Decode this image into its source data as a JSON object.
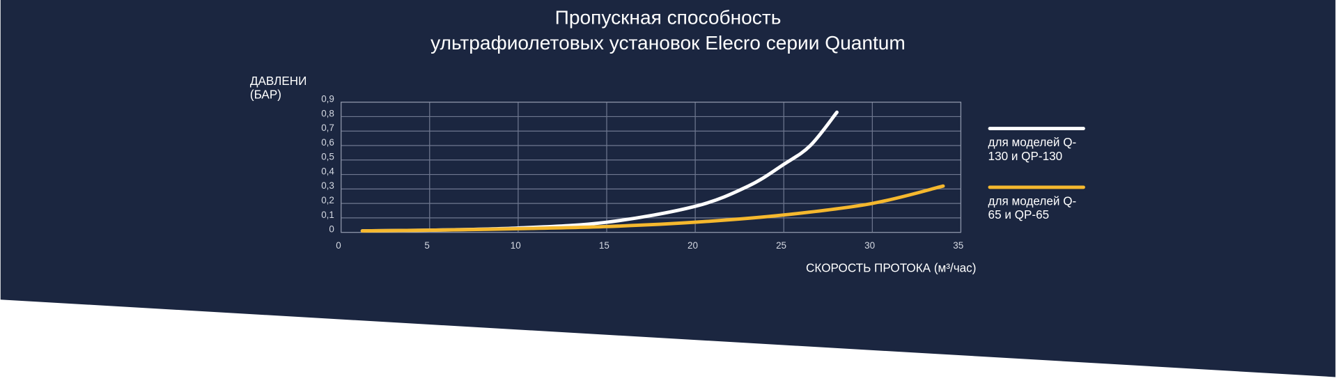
{
  "chart_data": {
    "type": "line",
    "title_lines": [
      "Пропускная способность",
      "ультрафиолетовых установок Elecro серии Quantum"
    ],
    "ylabel_lines": [
      "ДАВЛЕНИ",
      "(БАР)"
    ],
    "xlabel": "СКОРОСТЬ ПРОТОКА (м³/час)",
    "xlim": [
      0,
      35
    ],
    "xticks": [
      0,
      5,
      10,
      15,
      20,
      25,
      30,
      35
    ],
    "ylim": [
      0,
      0.9
    ],
    "yticks": [
      0,
      {
        "value": 0.1,
        "label": "0,1"
      },
      {
        "value": 0.2,
        "label": "0,2"
      },
      {
        "value": 0.3,
        "label": "0,3"
      },
      {
        "value": 0.4,
        "label": "0,4"
      },
      {
        "value": 0.5,
        "label": "0,5"
      },
      {
        "value": 0.6,
        "label": "0,6"
      },
      {
        "value": 0.7,
        "label": "0,7"
      },
      {
        "value": 0.8,
        "label": "0,8"
      },
      {
        "value": 0.9,
        "label": "0,9"
      }
    ],
    "grid": true,
    "series": [
      {
        "name": "для моделей Q-130 и QP-130",
        "color": "#ffffff",
        "x": [
          1.2,
          5,
          10,
          15,
          20,
          23,
          25,
          26.5,
          28
        ],
        "values": [
          0.01,
          0.015,
          0.03,
          0.07,
          0.18,
          0.32,
          0.47,
          0.6,
          0.83
        ]
      },
      {
        "name": "для моделей Q-65 и QP-65",
        "color": "#f5b82e",
        "x": [
          1.2,
          5,
          10,
          15,
          20,
          25,
          30,
          34
        ],
        "values": [
          0.01,
          0.015,
          0.025,
          0.04,
          0.07,
          0.12,
          0.2,
          0.32
        ]
      }
    ]
  }
}
